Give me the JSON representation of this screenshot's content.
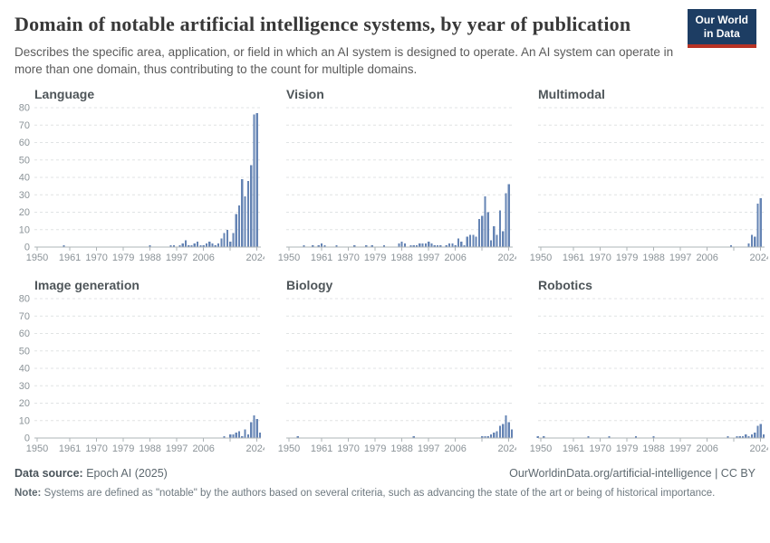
{
  "header": {
    "title": "Domain of notable artificial intelligence systems, by year of publication",
    "subtitle": "Describes the specific area, application, or field in which an AI system is designed to operate. An AI system can operate in more than one domain, thus contributing to the count for multiple domains.",
    "logo": {
      "line1": "Our World",
      "line2": "in Data",
      "bg": "#1d3d63",
      "accent": "#b73225"
    }
  },
  "styles": {
    "bar_color": "#6584b4",
    "grid_color": "#e0e3e4",
    "axis_color": "#aeb4b7",
    "label_color": "#8b9398"
  },
  "axes": {
    "ylim": [
      0,
      80
    ],
    "yticks": [
      0,
      10,
      20,
      30,
      40,
      50,
      60,
      70,
      80
    ],
    "grid": "dashed-horizontal",
    "xticks": [
      {
        "year": 1950,
        "label": "1950"
      },
      {
        "year": 1961,
        "label": "1961"
      },
      {
        "year": 1970,
        "label": "1970"
      },
      {
        "year": 1979,
        "label": "1979"
      },
      {
        "year": 1988,
        "label": "1988"
      },
      {
        "year": 1997,
        "label": "1997"
      },
      {
        "year": 2006,
        "label": "2006"
      },
      {
        "year": 2015,
        "label": ""
      },
      {
        "year": 2024,
        "label": "2024"
      }
    ]
  },
  "chart_data": [
    {
      "type": "bar",
      "title": "Language",
      "show_y_labels": true,
      "years": [
        1959,
        1988,
        1995,
        1996,
        1998,
        1999,
        2000,
        2001,
        2002,
        2003,
        2004,
        2005,
        2006,
        2007,
        2008,
        2009,
        2010,
        2011,
        2012,
        2013,
        2014,
        2015,
        2016,
        2017,
        2018,
        2019,
        2020,
        2021,
        2022,
        2023,
        2024
      ],
      "values": [
        1,
        1,
        1,
        1,
        1,
        2,
        4,
        1,
        1,
        2,
        3,
        1,
        1,
        2,
        3,
        2,
        1,
        2,
        5,
        8,
        10,
        3,
        8,
        19,
        24,
        39,
        29,
        38,
        47,
        76,
        77
      ]
    },
    {
      "type": "bar",
      "title": "Vision",
      "show_y_labels": false,
      "years": [
        1955,
        1958,
        1960,
        1961,
        1962,
        1966,
        1972,
        1976,
        1978,
        1982,
        1987,
        1988,
        1989,
        1991,
        1992,
        1993,
        1994,
        1995,
        1996,
        1997,
        1998,
        1999,
        2000,
        2001,
        2003,
        2004,
        2005,
        2006,
        2007,
        2008,
        2009,
        2010,
        2011,
        2012,
        2013,
        2014,
        2015,
        2016,
        2017,
        2018,
        2019,
        2020,
        2021,
        2022,
        2023,
        2024
      ],
      "values": [
        1,
        1,
        1,
        2,
        1,
        1,
        1,
        1,
        1,
        1,
        2,
        3,
        2,
        1,
        1,
        1,
        2,
        2,
        2,
        3,
        2,
        1,
        1,
        1,
        1,
        2,
        2,
        1,
        5,
        3,
        1,
        6,
        7,
        7,
        6,
        16,
        18,
        29,
        20,
        4,
        12,
        7,
        21,
        9,
        31,
        36
      ]
    },
    {
      "type": "bar",
      "title": "Multimodal",
      "show_y_labels": false,
      "years": [
        2014,
        2020,
        2021,
        2022,
        2023,
        2024
      ],
      "values": [
        1,
        2,
        7,
        6,
        25,
        28
      ]
    },
    {
      "type": "bar",
      "title": "Image generation",
      "show_y_labels": true,
      "years": [
        2013,
        2015,
        2016,
        2017,
        2018,
        2019,
        2020,
        2021,
        2022,
        2023,
        2024,
        2025
      ],
      "values": [
        1,
        2,
        2,
        3,
        4,
        1,
        5,
        2,
        9,
        13,
        11,
        3
      ]
    },
    {
      "type": "bar",
      "title": "Biology",
      "show_y_labels": false,
      "years": [
        1953,
        1992,
        2015,
        2016,
        2017,
        2018,
        2019,
        2020,
        2021,
        2022,
        2023,
        2024,
        2025
      ],
      "values": [
        1,
        1,
        1,
        1,
        1,
        2,
        3,
        4,
        7,
        8,
        13,
        9,
        5
      ]
    },
    {
      "type": "bar",
      "title": "Robotics",
      "show_y_labels": false,
      "years": [
        1949,
        1951,
        1966,
        1973,
        1982,
        1988,
        2013,
        2016,
        2017,
        2018,
        2019,
        2020,
        2021,
        2022,
        2023,
        2024,
        2025
      ],
      "values": [
        1,
        1,
        1,
        1,
        1,
        1,
        1,
        1,
        1,
        1,
        2,
        1,
        2,
        3,
        7,
        8,
        2
      ]
    }
  ],
  "footer": {
    "source_label": "Data source:",
    "source_value": " Epoch AI (2025)",
    "link": "OurWorldinData.org/artificial-intelligence | CC BY",
    "note_label": "Note:",
    "note_value": " Systems are defined as \"notable\" by the authors based on several criteria, such as advancing the state of the art or being of historical importance."
  }
}
